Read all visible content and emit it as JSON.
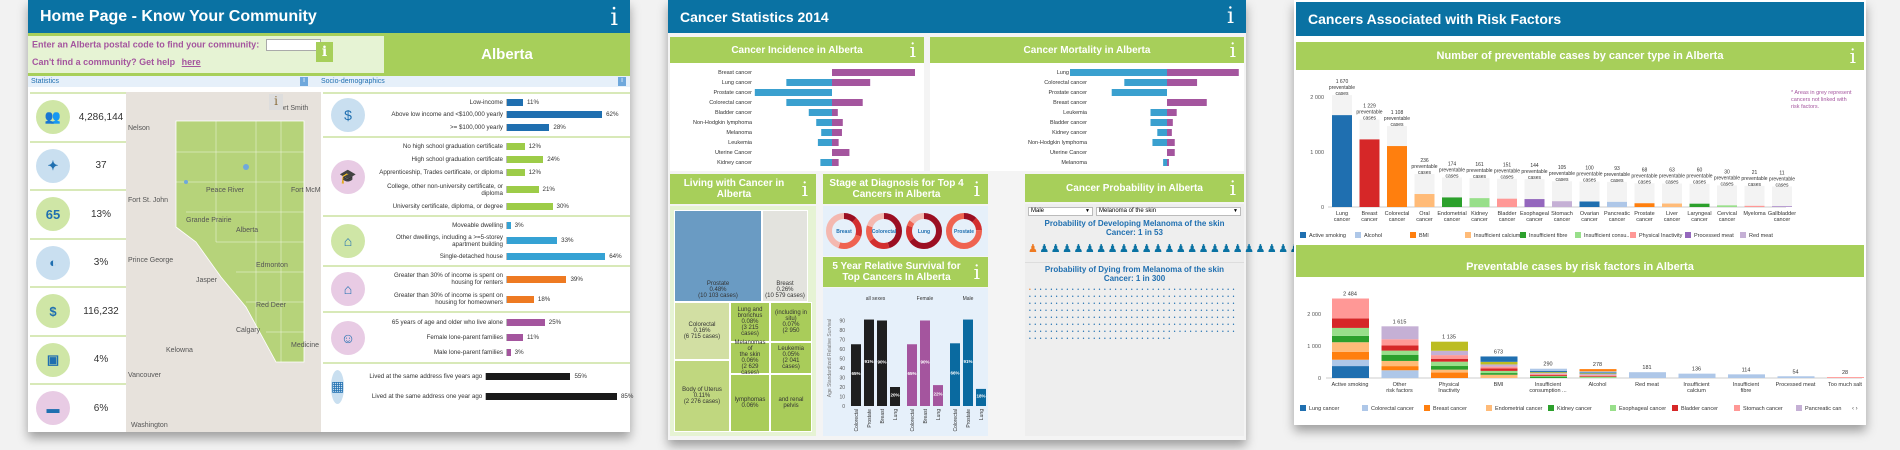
{
  "home": {
    "title": "Home Page - Know Your Community",
    "postal_prompt": "Enter an Alberta postal code to find your community:",
    "postal_value": "",
    "help_text": "Can't find a community? Get help",
    "help_link": "here",
    "region": "Alberta",
    "statistics_label": "Statistics",
    "socio_label": "Socio-demographics",
    "stats": [
      {
        "icon": "population-icon",
        "value": "4,286,144",
        "bg": "#cfe6a6"
      },
      {
        "icon": "person-icon",
        "value": "37",
        "bg": "#c9dff0"
      },
      {
        "icon": "age-65-icon",
        "value": "13%",
        "bg": "#cfe6a6"
      },
      {
        "icon": "dreamcatcher-icon",
        "value": "3%",
        "bg": "#c9dff0"
      },
      {
        "icon": "income-icon",
        "value": "116,232",
        "bg": "#cfe6a6"
      },
      {
        "icon": "passport-icon",
        "value": "4%",
        "bg": "#cfe6a6"
      },
      {
        "icon": "briefcase-icon",
        "value": "6%",
        "bg": "#e8cbe4"
      }
    ],
    "map_labels": [
      "Fort Smith",
      "Nelson",
      "Fort McMu",
      "Fort St. John",
      "Peace River",
      "Grande Prairie",
      "Alberta",
      "Prince George",
      "Edmonton",
      "Jasper",
      "Red Deer",
      "Calgary",
      "Kelowna",
      "Medicine Hat",
      "Vancouver",
      "Washington"
    ],
    "socio_groups": [
      {
        "icon": "income-icon",
        "bg": "#c9dff0",
        "color": "#1f6fb0",
        "items": [
          [
            "Low-income",
            11
          ],
          [
            "Above low income and <$100,000 yearly",
            62
          ],
          [
            ">= $100,000 yearly",
            28
          ]
        ]
      },
      {
        "icon": "graduation-cap-icon",
        "bg": "#e8cbe4",
        "color": "#9dcc48",
        "items": [
          [
            "No high school graduation certificate",
            12
          ],
          [
            "High school graduation certificate",
            24
          ],
          [
            "Apprenticeship, Trades certificate, or diploma",
            12
          ],
          [
            "College, other non-university certificate, or diploma",
            21
          ],
          [
            "University certificate, diploma, or degree",
            30
          ]
        ]
      },
      {
        "icon": "house-building-icon",
        "bg": "#cfe6a6",
        "color": "#35a2d4",
        "items": [
          [
            "Moveable dwelling",
            3
          ],
          [
            "Other dwellings, including a >=5-storey apartment building",
            33
          ],
          [
            "Single-detached house",
            64
          ]
        ]
      },
      {
        "icon": "house-dollar-icon",
        "bg": "#e8cbe4",
        "color": "#ee7a22",
        "items": [
          [
            "Greater than 30% of income is spent on housing for renters",
            39
          ],
          [
            "Greater than 30% of income is spent on housing for homeowners",
            18
          ]
        ]
      },
      {
        "icon": "family-icon",
        "bg": "#e8cbe4",
        "color": "#a4559e",
        "items": [
          [
            "65 years of age and older who live alone",
            25
          ],
          [
            "Female lone-parent families",
            11
          ],
          [
            "Male lone-parent families",
            3
          ]
        ]
      },
      {
        "icon": "suitcase-icon",
        "bg": "#c9dff0",
        "color": "#1a1a1a",
        "items": [
          [
            "Lived at the same address five years ago",
            55
          ],
          [
            "Lived at the same address one year ago",
            85
          ]
        ]
      }
    ]
  },
  "cancer": {
    "title": "Cancer Statistics 2014",
    "incidence_title": "Cancer Incidence in Alberta",
    "mortality_title": "Cancer Mortality in Alberta",
    "incidence": [
      [
        "Breast cancer",
        0,
        100
      ],
      [
        "Lung cancer",
        55,
        46
      ],
      [
        "Prostate cancer",
        93,
        0
      ],
      [
        "Colorectal cancer",
        55,
        37
      ],
      [
        "Bladder cancer",
        28,
        7
      ],
      [
        "Non-Hodgkin lymphoma",
        19,
        13
      ],
      [
        "Melanoma",
        13,
        12
      ],
      [
        "Leukemia",
        17,
        8
      ],
      [
        "Uterine Cancer",
        0,
        21
      ],
      [
        "Kidney cancer",
        14,
        8
      ]
    ],
    "mortality": [
      [
        "Lung cancer",
        100,
        74
      ],
      [
        "Colorectal cancer",
        44,
        31
      ],
      [
        "Prostate cancer",
        57,
        0
      ],
      [
        "Breast cancer",
        0,
        41
      ],
      [
        "Leukemia",
        17,
        10
      ],
      [
        "Bladder cancer",
        17,
        6
      ],
      [
        "Kidney cancer",
        10,
        5
      ],
      [
        "Non-Hodgkin lymphoma",
        15,
        8
      ],
      [
        "Uterine Cancer",
        0,
        8
      ],
      [
        "Melanoma",
        4,
        2
      ]
    ],
    "living_title": "Living with Cancer in Alberta",
    "treemap": [
      {
        "label": "Prostate\n0.48%\n(10 103 cases)",
        "color": "#6a9bc3"
      },
      {
        "label": "Breast\n0.26%\n(10 579 cases)",
        "color": "#e3e3de"
      },
      {
        "label": "Colorectal\n0.16%\n(6 715 cases)",
        "color": "#d2dfa3"
      },
      {
        "label": "Body of Uterus\n0.11%\n(2 276 cases)",
        "color": "#c0d77f"
      },
      {
        "label": "Lung and\nbronchus\n0.08%\n(3 215\ncases)",
        "color": "#a9cc5a"
      },
      {
        "label": "(including in\nsitu)\n0.07%\n(2 950",
        "color": "#a9cc5a"
      },
      {
        "label": "Melanomas of\nthe skin\n0.06%\n(2 629 cases)",
        "color": "#a9cc5a"
      },
      {
        "label": "Leukemia\n0.05%\n(2 041\ncases)",
        "color": "#a9cc5a"
      },
      {
        "label": "lymphomas\n0.06%",
        "color": "#a9cc5a"
      },
      {
        "label": "and renal\npelvis",
        "color": "#a9cc5a"
      }
    ],
    "stage_title": "Stage at Diagnosis for Top 4 Cancers in Alberta",
    "stage_donuts": [
      {
        "label": "Breast",
        "segments": [
          0.12,
          0.18,
          0.25,
          0.45
        ]
      },
      {
        "label": "Colorectal",
        "segments": [
          0.45,
          0.2,
          0.15,
          0.2
        ]
      },
      {
        "label": "Lung",
        "segments": [
          0.65,
          0.15,
          0.05,
          0.15
        ]
      },
      {
        "label": "Prostate",
        "segments": [
          0.12,
          0.12,
          0.76,
          0
        ]
      }
    ],
    "survival_title": "5 Year Relative Survival for Top Cancers In Alberta",
    "survival_ylabel": "Age Standardized Relative Survival",
    "survival_groups": [
      {
        "name": "all sexes",
        "color": "#1f1f1f",
        "bars": [
          [
            "Colorectal",
            65
          ],
          [
            "Prostate",
            91
          ],
          [
            "Breast",
            90
          ],
          [
            "Lung",
            20
          ]
        ]
      },
      {
        "name": "Female",
        "color": "#a4559e",
        "bars": [
          [
            "Colorectal",
            65
          ],
          [
            "Breast",
            90
          ],
          [
            "Lung",
            22
          ]
        ]
      },
      {
        "name": "Male",
        "color": "#0a6aa0",
        "bars": [
          [
            "Colorectal",
            66
          ],
          [
            "Prostate",
            91
          ],
          [
            "Lung",
            18
          ]
        ]
      }
    ],
    "survival_yticks": [
      0,
      10,
      20,
      30,
      40,
      50,
      60,
      70,
      80,
      90
    ],
    "probability_title": "Cancer Probability in Alberta",
    "sex_select": "Male",
    "cancer_select": "Melanoma of the skin",
    "develop_text": "Probability of Developing Melanoma of the skin Cancer: 1 in 53",
    "dying_text": "Probability of Dying from Melanoma of the skin Cancer: 1 in 300"
  },
  "risk": {
    "title": "Cancers Associated with Risk Factors",
    "chart1_title": "Number of preventable cases by cancer type in Alberta",
    "note": "* Areas in grey represent cancers not linked with risk factors.",
    "chart2_title": "Preventable cases by risk factors in Alberta"
  },
  "chart_data": [
    {
      "type": "bar",
      "title": "Number of preventable cases by cancer type in Alberta",
      "ylabel": "",
      "ylim": [
        0,
        2000
      ],
      "yticks": [
        "0",
        "1 000",
        "2 000"
      ],
      "categories": [
        "Lung cancer",
        "Breast cancer",
        "Colorectal cancer",
        "Oral cancer",
        "Endometrial cancer",
        "Kidney cancer",
        "Bladder cancer",
        "Esophageal cancer",
        "Stomach cancer",
        "Ovarian cancer",
        "Pancreatic cancer",
        "Prostate cancer",
        "Liver cancer",
        "Laryngeal cancer",
        "Cervical cancer",
        "Myeloma",
        "Gallbladder cancer"
      ],
      "labels": [
        "1 670 preventable cases",
        "1 229 preventable cases",
        "1 108 preventable cases",
        "236 preventable cases",
        "174 preventable cases",
        "161 preventable cases",
        "151 preventable cases",
        "144 preventable cases",
        "105 preventable cases",
        "100 preventable cases",
        "93 preventable cases",
        "68 preventable cases",
        "63 preventable cases",
        "60 preventable cases",
        "30 preventable cases",
        "21 preventable cases",
        "11 preventable cases"
      ],
      "values": [
        1670,
        1229,
        1108,
        236,
        174,
        161,
        151,
        144,
        105,
        100,
        93,
        68,
        63,
        60,
        30,
        21,
        11
      ],
      "legend": [
        "Active smoking",
        "Alcohol",
        "BMI",
        "Insufficient calcium",
        "Insufficient fibre",
        "Insufficient consu...",
        "Physical Inactivity",
        "Processed meat",
        "Red meat"
      ],
      "legend_colors": [
        "#1f6fb0",
        "#aec7e8",
        "#ff7f0e",
        "#ffbb78",
        "#2ca02c",
        "#98df8a",
        "#ff9896",
        "#9467bd",
        "#c5b0d5"
      ]
    },
    {
      "type": "bar",
      "title": "Preventable cases by risk factors in Alberta",
      "ylim": [
        0,
        2500
      ],
      "yticks": [
        "0",
        "1 000",
        "2 000"
      ],
      "categories": [
        "Active smoking",
        "Other risk factors",
        "Physical Inactivity",
        "BMI",
        "Insufficient consumption ...",
        "Alcohol",
        "Red meat",
        "Insufficient calcium",
        "Insufficient fibre",
        "Processed meat",
        "Too much salt"
      ],
      "values": [
        2484,
        1615,
        1135,
        673,
        290,
        278,
        181,
        136,
        114,
        54,
        28
      ],
      "labels": [
        "2 484",
        "1 615",
        "1 135",
        "673",
        "290",
        "278",
        "181",
        "136",
        "114",
        "54",
        "28"
      ],
      "legend": [
        "Lung cancer",
        "Colorectal cancer",
        "Breast cancer",
        "Endometrial cancer",
        "Kidney cancer",
        "Esophageal cancer",
        "Bladder cancer",
        "Stomach cancer",
        "Pancreatic can"
      ],
      "legend_colors": [
        "#1f6fb0",
        "#aec7e8",
        "#ff7f0e",
        "#ffbb78",
        "#2ca02c",
        "#98df8a",
        "#d62728",
        "#ff9896",
        "#c5b0d5"
      ]
    }
  ]
}
